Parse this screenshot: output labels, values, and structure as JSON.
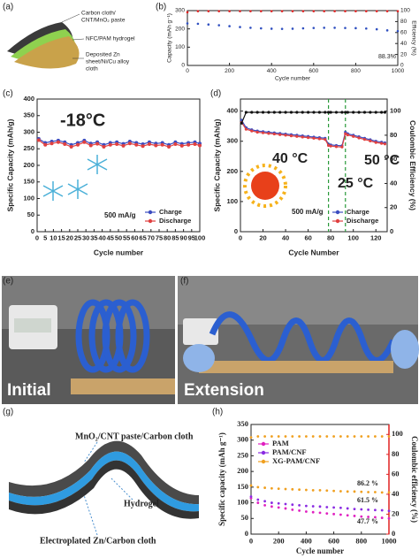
{
  "figure": {
    "panel_labels": [
      "(a)",
      "(b)",
      "(c)",
      "(d)",
      "(e)",
      "(f)",
      "(g)",
      "(h)"
    ],
    "diagram_a": [
      [
        "Carbon cloth/",
        "CNT/MnO₂ paste"
      ],
      [
        "NFC/PAM  hydrogel"
      ],
      [
        "Deposited Zn",
        "sheet/Ni/Cu alloy",
        "cloth"
      ]
    ],
    "photo_e": "Initial",
    "photo_f": "Extension",
    "diagram_g": [
      "MnO₂/CNT paste/Carbon cloth",
      "Hydrogel",
      "Electroplated Zn/Carbon cloth"
    ]
  },
  "chart_data": [
    {
      "type": "scatter",
      "xlabel": "Cycle number",
      "ylabel": "Capacity (mAh g⁻¹)",
      "y2label": "Efficiency (%)",
      "x": [
        0,
        50,
        100,
        150,
        200,
        250,
        300,
        350,
        400,
        450,
        500,
        550,
        600,
        650,
        700,
        750,
        800,
        850,
        900,
        950,
        1000
      ],
      "series": [
        {
          "color": "#3050c0",
          "values": [
            230,
            228,
            224,
            220,
            215,
            210,
            206,
            203,
            201,
            200,
            201,
            203,
            205,
            206,
            206,
            205,
            204,
            202,
            198,
            192,
            188
          ]
        },
        {
          "color": "#e02020",
          "axis": "y2",
          "values": [
            97,
            99,
            99,
            99,
            99,
            99,
            99,
            99,
            99,
            99,
            99,
            99,
            99,
            99,
            99,
            99,
            99,
            99,
            99,
            99,
            99
          ]
        }
      ],
      "xlim": [
        0,
        1000
      ],
      "xticks": [
        0,
        200,
        400,
        600,
        800,
        1000
      ],
      "ylim": [
        0,
        300
      ],
      "yticks": [
        0,
        100,
        200,
        300
      ],
      "y2lim": [
        0,
        100
      ],
      "y2ticks": [
        0,
        20,
        40,
        60,
        80,
        100
      ],
      "annotations": [
        "88.3%"
      ]
    },
    {
      "type": "line",
      "xlabel": "Cycle number",
      "ylabel": "Specific Capacity (mAh/g)",
      "x": [
        1,
        5,
        9,
        13,
        17,
        21,
        25,
        29,
        33,
        37,
        41,
        45,
        49,
        53,
        57,
        61,
        65,
        69,
        73,
        77,
        81,
        85,
        89,
        93,
        97,
        100
      ],
      "series": [
        {
          "name": "Charge",
          "color": "#3b4cc0",
          "values": [
            280,
            268,
            272,
            275,
            270,
            262,
            268,
            275,
            266,
            270,
            262,
            268,
            270,
            265,
            272,
            268,
            264,
            270,
            266,
            268,
            262,
            270,
            265,
            268,
            270,
            266
          ]
        },
        {
          "name": "Discharge",
          "color": "#e04040",
          "values": [
            276,
            262,
            266,
            270,
            264,
            256,
            262,
            270,
            260,
            265,
            256,
            262,
            264,
            259,
            266,
            262,
            258,
            264,
            260,
            262,
            256,
            264,
            259,
            262,
            264,
            260
          ]
        }
      ],
      "xlim": [
        0,
        100
      ],
      "xticks": [
        0,
        5,
        10,
        15,
        20,
        25,
        30,
        35,
        40,
        45,
        50,
        55,
        60,
        65,
        70,
        75,
        80,
        85,
        90,
        95,
        100
      ],
      "ylim": [
        0,
        400
      ],
      "yticks": [
        0,
        50,
        100,
        150,
        200,
        250,
        300,
        350,
        400
      ],
      "legend": "lower right",
      "annotations": [
        "-18°C",
        "500 mA/g"
      ]
    },
    {
      "type": "line",
      "xlabel": "Cycle Number",
      "ylabel": "Specific Capacity (mAh/g)",
      "y2label": "Coulombic Efficiency (%)",
      "x": [
        1,
        5,
        10,
        15,
        20,
        25,
        30,
        35,
        40,
        45,
        50,
        55,
        60,
        65,
        70,
        75,
        78,
        80,
        85,
        90,
        93,
        95,
        100,
        105,
        110,
        115,
        120,
        125,
        128
      ],
      "series": [
        {
          "name": "Charge",
          "color": "#3b4cc0",
          "values": [
            370,
            345,
            338,
            334,
            332,
            330,
            328,
            326,
            324,
            322,
            320,
            318,
            316,
            314,
            312,
            310,
            290,
            288,
            286,
            285,
            330,
            325,
            320,
            315,
            310,
            305,
            300,
            297,
            295
          ]
        },
        {
          "name": "Discharge",
          "color": "#e04040",
          "values": [
            362,
            340,
            334,
            330,
            328,
            326,
            324,
            322,
            320,
            318,
            316,
            314,
            312,
            310,
            308,
            306,
            286,
            284,
            282,
            281,
            325,
            321,
            316,
            311,
            306,
            301,
            296,
            293,
            291
          ]
        },
        {
          "color": "#111111",
          "axis": "y2",
          "values": [
            90,
            99,
            99,
            99,
            99,
            99,
            99,
            99,
            99,
            99,
            99,
            99,
            99,
            99,
            99,
            99,
            99,
            99,
            99,
            99,
            99,
            99,
            99,
            99,
            99,
            99,
            99,
            99,
            99
          ]
        }
      ],
      "vlines": [
        78,
        93
      ],
      "xlim": [
        0,
        130
      ],
      "xticks": [
        0,
        20,
        40,
        60,
        80,
        100,
        120
      ],
      "ylim": [
        0,
        440
      ],
      "yticks": [
        0,
        100,
        200,
        300,
        400
      ],
      "y2lim": [
        0,
        110
      ],
      "y2ticks": [
        0,
        20,
        40,
        60,
        80,
        100
      ],
      "legend": "lower right",
      "annotations": [
        "40 °C",
        "25 °C",
        "50 °C",
        "500 mA/g"
      ]
    },
    {
      "type": "scatter",
      "xlabel": "Cycle number",
      "ylabel": "Specific capacity (mAh g⁻¹)",
      "y2label": "Coulombic efficiency (%)",
      "y2color": "#e02020",
      "x": [
        0,
        50,
        100,
        150,
        200,
        250,
        300,
        350,
        400,
        450,
        500,
        550,
        600,
        650,
        700,
        750,
        800,
        850,
        900,
        950,
        1000
      ],
      "series": [
        {
          "name": "PAM",
          "color": "#e020c0",
          "values": [
            115,
            100,
            92,
            88,
            85,
            82,
            78,
            75,
            72,
            70,
            68,
            66,
            64,
            62,
            60,
            58,
            56,
            55,
            54,
            52,
            50
          ]
        },
        {
          "name": "PAM/CNF",
          "color": "#8a2be2",
          "values": [
            120,
            110,
            105,
            100,
            98,
            96,
            94,
            92,
            90,
            89,
            88,
            86,
            85,
            84,
            82,
            80,
            79,
            78,
            77,
            76,
            74
          ]
        },
        {
          "name": "XG-PAM/CNF",
          "color": "#f0a020",
          "values": [
            155,
            150,
            148,
            146,
            145,
            144,
            143,
            142,
            141,
            140,
            140,
            139,
            138,
            137,
            136,
            136,
            135,
            134,
            134,
            133,
            133
          ]
        },
        {
          "color": "#f0a020",
          "axis": "y2",
          "values": [
            97,
            98,
            98,
            98,
            98,
            98,
            98,
            98,
            98,
            98,
            98,
            98,
            98,
            98,
            98,
            98,
            98,
            98,
            98,
            98,
            98
          ]
        }
      ],
      "xlim": [
        0,
        1000
      ],
      "xticks": [
        0,
        200,
        400,
        600,
        800,
        1000
      ],
      "ylim": [
        0,
        350
      ],
      "yticks": [
        0,
        50,
        100,
        150,
        200,
        250,
        300,
        350
      ],
      "y2lim": [
        0,
        110
      ],
      "y2ticks": [
        0,
        20,
        40,
        60,
        80,
        100
      ],
      "legend": "upper left",
      "annotations": [
        "86.2 %",
        "61.5 %",
        "47.7 %"
      ]
    }
  ]
}
